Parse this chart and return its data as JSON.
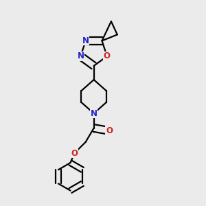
{
  "bg_color": "#ebebeb",
  "bond_color": "#000000",
  "bond_width": 1.6,
  "N_color": "#2222cc",
  "O_color": "#cc2222",
  "font_size_atom": 8.5,
  "fig_size": [
    3.0,
    3.0
  ],
  "dpi": 100,
  "xlim": [
    0,
    1
  ],
  "ylim": [
    0,
    1
  ],
  "dbl_off": 0.018,
  "dbl_off_bz": 0.013
}
